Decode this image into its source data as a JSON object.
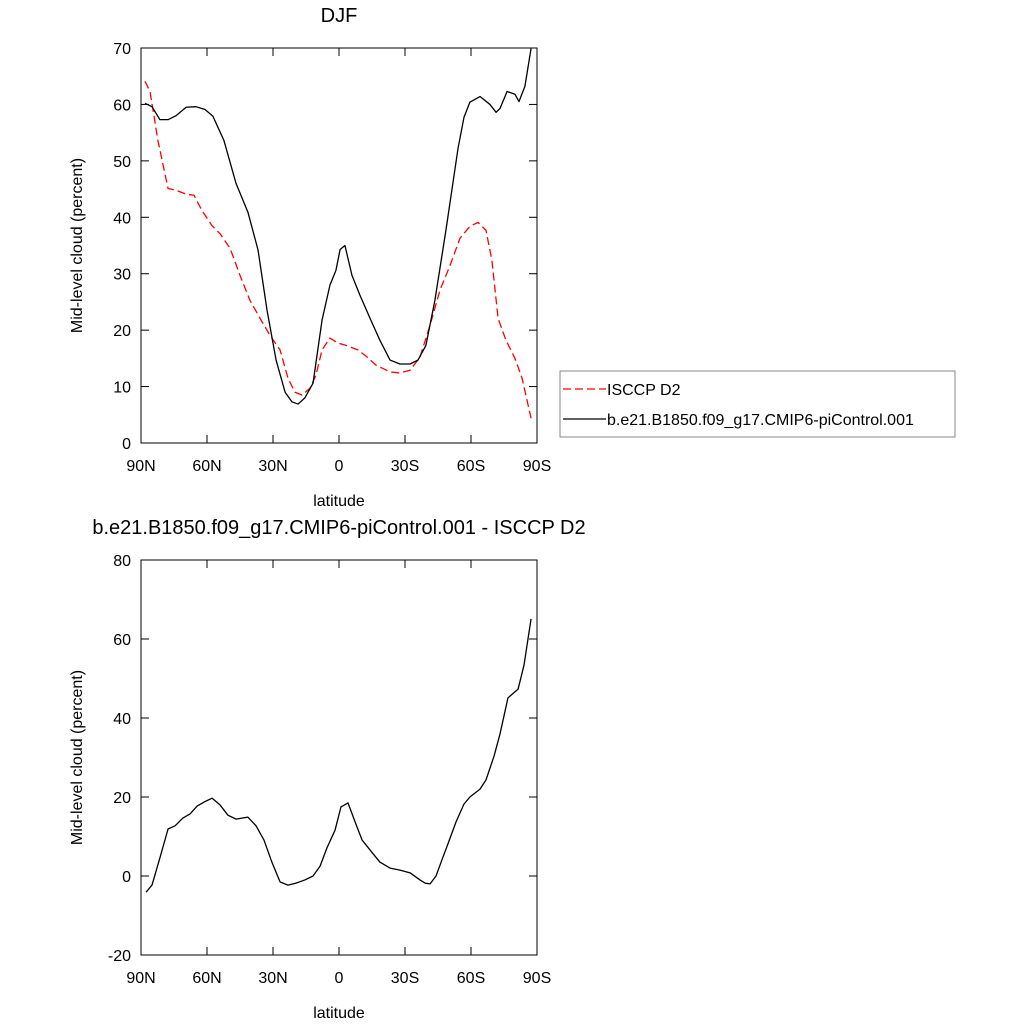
{
  "chart_data": [
    {
      "type": "line",
      "title": "DJF",
      "x_label": "latitude",
      "y_label": "Mid-level cloud (percent)",
      "xlim": [
        90,
        -90
      ],
      "xticks": [
        {
          "value": 90,
          "label": "90N"
        },
        {
          "value": 60,
          "label": "60N"
        },
        {
          "value": 30,
          "label": "30N"
        },
        {
          "value": 0,
          "label": "0"
        },
        {
          "value": -30,
          "label": "30S"
        },
        {
          "value": -60,
          "label": "60S"
        },
        {
          "value": -90,
          "label": "90S"
        }
      ],
      "ylim": [
        0,
        70
      ],
      "yticks": [
        0,
        10,
        20,
        30,
        40,
        50,
        60,
        70
      ],
      "legend_position": "outside right",
      "series": [
        {
          "name": "ISCCP D2",
          "color": "#ff0000",
          "style": "dashed",
          "x": [
            88.2,
            85.9,
            82.3,
            77.7,
            74.1,
            69.5,
            65.9,
            62.3,
            57.7,
            54.1,
            49.5,
            45.0,
            40.5,
            35.9,
            31.4,
            26.8,
            23.2,
            20.0,
            16.8,
            13.2,
            10.5,
            7.7,
            4.1,
            0.5,
            -3.2,
            -8.6,
            -12.3,
            -16.8,
            -23.2,
            -27.7,
            -32.3,
            -36.8,
            -41.4,
            -45.9,
            -50.5,
            -55.0,
            -59.5,
            -63.2,
            -66.8,
            -69.5,
            -72.3,
            -75.9,
            -80.0,
            -83.2,
            -87.3
          ],
          "values": [
            64.1,
            62.3,
            53.6,
            45.1,
            44.8,
            44.1,
            43.9,
            41.2,
            38.5,
            37.1,
            34.5,
            29.7,
            25.3,
            22.1,
            19.1,
            16.5,
            11.5,
            9.0,
            8.5,
            9.7,
            12.0,
            16.5,
            18.6,
            17.7,
            17.3,
            16.5,
            15.4,
            13.8,
            12.6,
            12.4,
            12.9,
            15.2,
            20.9,
            27.1,
            31.5,
            36.3,
            38.4,
            39.1,
            37.7,
            32.4,
            22.1,
            18.2,
            15.0,
            11.5,
            4.4
          ]
        },
        {
          "name": "b.e21.B1850.f09_g17.CMIP6-piControl.001",
          "color": "#000000",
          "style": "solid",
          "x": [
            88.2,
            85.0,
            81.4,
            77.7,
            74.1,
            69.5,
            65.0,
            60.9,
            57.3,
            52.3,
            46.8,
            41.4,
            36.8,
            32.7,
            28.6,
            24.5,
            21.4,
            18.6,
            15.5,
            11.8,
            7.7,
            4.1,
            1.4,
            -0.5,
            -2.7,
            -5.9,
            -9.5,
            -14.1,
            -18.6,
            -23.2,
            -27.7,
            -32.3,
            -35.9,
            -39.5,
            -43.6,
            -48.6,
            -54.1,
            -56.8,
            -59.5,
            -64.1,
            -68.6,
            -71.4,
            -73.2,
            -76.4,
            -80.0,
            -81.8,
            -84.5,
            -87.3
          ],
          "values": [
            60.2,
            59.6,
            57.3,
            57.3,
            58.0,
            59.5,
            59.6,
            59.1,
            57.9,
            53.6,
            46.0,
            40.9,
            34.2,
            23.5,
            14.7,
            9.0,
            7.3,
            6.9,
            8.0,
            10.6,
            21.8,
            28.0,
            30.6,
            34.3,
            35.0,
            29.7,
            26.2,
            22.1,
            18.2,
            14.7,
            14.0,
            14.0,
            14.7,
            17.3,
            25.3,
            37.7,
            52.2,
            57.7,
            60.4,
            61.4,
            60.0,
            58.6,
            59.3,
            62.3,
            61.8,
            60.5,
            63.2,
            69.9
          ]
        }
      ]
    },
    {
      "type": "line",
      "title": "b.e21.B1850.f09_g17.CMIP6-piControl.001 - ISCCP D2",
      "x_label": "latitude",
      "y_label": "Mid-level cloud (percent)",
      "xlim": [
        90,
        -90
      ],
      "xticks": [
        {
          "value": 90,
          "label": "90N"
        },
        {
          "value": 60,
          "label": "60N"
        },
        {
          "value": 30,
          "label": "30N"
        },
        {
          "value": 0,
          "label": "0"
        },
        {
          "value": -30,
          "label": "30S"
        },
        {
          "value": -60,
          "label": "60S"
        },
        {
          "value": -90,
          "label": "90S"
        }
      ],
      "ylim": [
        -20,
        80
      ],
      "yticks": [
        -20,
        0,
        20,
        40,
        60,
        80
      ],
      "series": [
        {
          "color": "#000000",
          "style": "solid",
          "x": [
            87.7,
            85.0,
            81.4,
            77.7,
            74.5,
            70.9,
            67.7,
            64.5,
            61.4,
            57.7,
            54.1,
            50.5,
            46.8,
            41.4,
            37.7,
            34.1,
            30.5,
            26.8,
            23.2,
            19.5,
            15.5,
            11.8,
            8.6,
            5.5,
            1.8,
            -0.9,
            -4.1,
            -7.3,
            -10.5,
            -14.1,
            -18.6,
            -23.2,
            -27.7,
            -32.3,
            -36.8,
            -39.1,
            -41.4,
            -44.1,
            -46.8,
            -49.5,
            -53.2,
            -56.8,
            -59.5,
            -64.1,
            -66.8,
            -70.5,
            -73.2,
            -76.8,
            -81.4,
            -84.1,
            -87.3
          ],
          "values": [
            -4.1,
            -2.3,
            4.6,
            11.9,
            12.7,
            14.7,
            15.7,
            17.7,
            18.7,
            19.7,
            18.0,
            15.4,
            14.4,
            14.9,
            12.7,
            9.1,
            3.5,
            -1.5,
            -2.3,
            -1.8,
            -1.0,
            0,
            2.5,
            7.1,
            11.6,
            17.5,
            18.5,
            13.7,
            9.1,
            6.6,
            3.5,
            2.0,
            1.5,
            0.8,
            -1.0,
            -1.8,
            -2.0,
            0,
            4.1,
            8.1,
            13.7,
            18.2,
            20.0,
            22.0,
            24.3,
            30.4,
            36.0,
            45.1,
            47.3,
            53.4,
            65.1
          ]
        }
      ]
    }
  ]
}
